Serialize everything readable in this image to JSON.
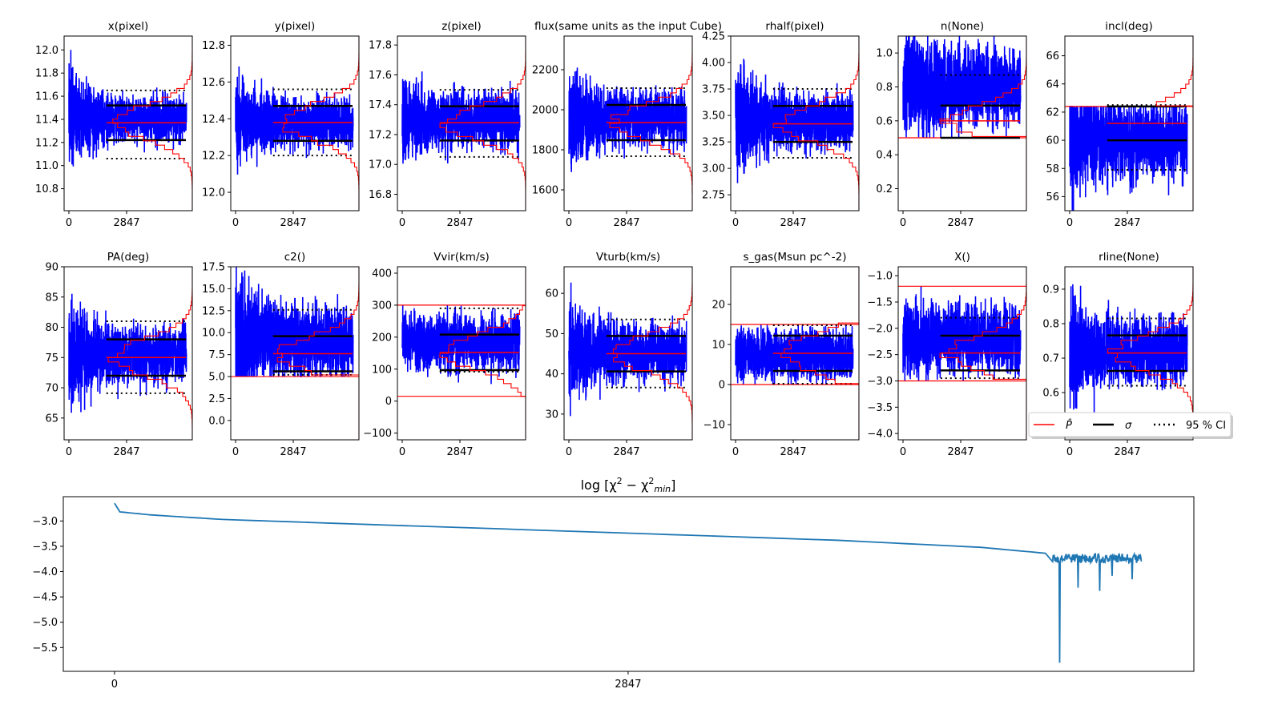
{
  "chart_data": {
    "type": "line",
    "description_title": "MCMC trace panels",
    "n_samples": 5800,
    "xticks": [
      0,
      2847
    ],
    "xtick_labels": [
      "0",
      "2847"
    ],
    "colors": {
      "trace": "#0000ff",
      "best": "#ff0000",
      "sigma": "#000000",
      "ci": "#000000",
      "prior": "#ff0000",
      "chi": "#1f77b4"
    },
    "panels": [
      {
        "title": "x(pixel)",
        "ylim": [
          10.61,
          12.12
        ],
        "yticks": [
          10.8,
          11.0,
          11.2,
          11.4,
          11.6,
          11.8,
          12.0
        ],
        "ytick_labels": [
          "10.8",
          "11.0",
          "11.2",
          "11.4",
          "11.6",
          "11.8",
          "12.0"
        ],
        "best": 11.37,
        "sigma": [
          11.22,
          11.52
        ],
        "ci": [
          11.06,
          11.65
        ],
        "priors": [],
        "trace_center": 11.4,
        "trace_amp": [
          0.6,
          0.25
        ]
      },
      {
        "title": "y(pixel)",
        "ylim": [
          11.9,
          12.85
        ],
        "yticks": [
          12.0,
          12.2,
          12.4,
          12.6,
          12.8
        ],
        "ytick_labels": [
          "12.0",
          "12.2",
          "12.4",
          "12.6",
          "12.8"
        ],
        "best": 12.38,
        "sigma": [
          12.28,
          12.47
        ],
        "ci": [
          12.2,
          12.56
        ],
        "priors": [],
        "trace_center": 12.38,
        "trace_amp": [
          0.3,
          0.17
        ]
      },
      {
        "title": "z(pixel)",
        "ylim": [
          16.69,
          17.86
        ],
        "yticks": [
          16.8,
          17.0,
          17.2,
          17.4,
          17.6,
          17.8
        ],
        "ytick_labels": [
          "16.8",
          "17.0",
          "17.2",
          "17.4",
          "17.6",
          "17.8"
        ],
        "best": 17.28,
        "sigma": [
          17.16,
          17.39
        ],
        "ci": [
          17.05,
          17.5
        ],
        "priors": [],
        "trace_center": 17.3,
        "trace_amp": [
          0.42,
          0.24
        ]
      },
      {
        "title": "flux(same units as the input Cube)",
        "ylim": [
          1496,
          2368
        ],
        "yticks": [
          1600,
          1800,
          2000,
          2200
        ],
        "ytick_labels": [
          "1600",
          "1800",
          "2000",
          "2200"
        ],
        "best": 1936,
        "sigma": [
          1848,
          2024
        ],
        "ci": [
          1768,
          2108
        ],
        "priors": [],
        "trace_center": 1960,
        "trace_amp": [
          360,
          170
        ]
      },
      {
        "title": "rhalf(pixel)",
        "ylim": [
          2.6,
          4.25
        ],
        "yticks": [
          2.75,
          3.0,
          3.25,
          3.5,
          3.75,
          4.0,
          4.25
        ],
        "ytick_labels": [
          "2.75",
          "3.00",
          "3.25",
          "3.50",
          "3.75",
          "4.00",
          "4.25"
        ],
        "best": 3.42,
        "sigma": [
          3.25,
          3.59
        ],
        "ci": [
          3.1,
          3.75
        ],
        "priors": [],
        "trace_center": 3.45,
        "trace_amp": [
          0.75,
          0.33
        ]
      },
      {
        "title": "n(None)",
        "ylim": [
          0.07,
          1.1
        ],
        "yticks": [
          0.2,
          0.4,
          0.6,
          0.8,
          1.0
        ],
        "ytick_labels": [
          "0.2",
          "0.4",
          "0.6",
          "0.8",
          "1.0"
        ],
        "best": 0.6,
        "sigma": [
          0.5,
          0.69
        ],
        "ci": [
          0.5,
          0.87
        ],
        "priors": [
          0.5
        ],
        "trace_center": 0.8,
        "trace_amp": [
          0.45,
          0.3
        ]
      },
      {
        "title": "incl(deg)",
        "ylim": [
          55.0,
          67.4
        ],
        "yticks": [
          56,
          58,
          60,
          62,
          64,
          66
        ],
        "ytick_labels": [
          "56",
          "58",
          "60",
          "62",
          "64",
          "66"
        ],
        "best": 61.2,
        "sigma": [
          60.0,
          62.4
        ],
        "ci": [
          57.9,
          62.5
        ],
        "priors": [
          62.4
        ],
        "trace_center": 60.0,
        "trace_amp": [
          6,
          3.5
        ]
      },
      {
        "title": "PA(deg)",
        "ylim": [
          61.4,
          90.0
        ],
        "yticks": [
          65,
          70,
          75,
          80,
          85,
          90
        ],
        "ytick_labels": [
          "65",
          "70",
          "75",
          "80",
          "85",
          "90"
        ],
        "best": 75.0,
        "sigma": [
          72.0,
          78.0
        ],
        "ci": [
          69.1,
          81.0
        ],
        "priors": [],
        "trace_center": 75.5,
        "trace_amp": [
          12,
          6
        ]
      },
      {
        "title": "c2()",
        "ylim": [
          -2.2,
          17.5
        ],
        "yticks": [
          0.0,
          2.5,
          5.0,
          7.5,
          10.0,
          12.5,
          15.0,
          17.5
        ],
        "ytick_labels": [
          "0.0",
          "2.5",
          "5.0",
          "7.5",
          "10.0",
          "12.5",
          "15.0",
          "17.5"
        ],
        "best": 7.6,
        "sigma": [
          5.6,
          9.6
        ],
        "ci": [
          5.2,
          12.6
        ],
        "priors": [
          5.0
        ],
        "trace_center": 9.0,
        "trace_amp": [
          11,
          5
        ]
      },
      {
        "title": "Vvir(km/s)",
        "ylim": [
          -121,
          420
        ],
        "yticks": [
          -100,
          0,
          100,
          200,
          300,
          400
        ],
        "ytick_labels": [
          "−100",
          "0",
          "100",
          "200",
          "300",
          "400"
        ],
        "best": 152,
        "sigma": [
          97,
          208
        ],
        "ci": [
          92,
          290
        ],
        "priors": [
          300,
          15
        ],
        "trace_center": 185,
        "trace_amp": [
          120,
          110
        ]
      },
      {
        "title": "Vturb(km/s)",
        "ylim": [
          23.6,
          66.6
        ],
        "yticks": [
          30,
          40,
          50,
          60
        ],
        "ytick_labels": [
          "30",
          "40",
          "50",
          "60"
        ],
        "best": 45.0,
        "sigma": [
          40.6,
          49.4
        ],
        "ci": [
          36.6,
          53.5
        ],
        "priors": [],
        "trace_center": 45.5,
        "trace_amp": [
          17,
          9
        ]
      },
      {
        "title": "s_gas(Msun pc^-2)",
        "ylim": [
          -13.8,
          29.4
        ],
        "yticks": [
          -10,
          0,
          10,
          20
        ],
        "ytick_labels": [
          "−10",
          "0",
          "10",
          "20"
        ],
        "best": 7.8,
        "sigma": [
          3.4,
          12.2
        ],
        "ci": [
          0.2,
          14.8
        ],
        "priors": [
          15,
          0
        ],
        "trace_center": 7.5,
        "trace_amp": [
          8,
          8
        ]
      },
      {
        "title": "X()",
        "ylim": [
          -4.12,
          -0.83
        ],
        "yticks": [
          -4.0,
          -3.5,
          -3.0,
          -2.5,
          -2.0,
          -1.5,
          -1.0
        ],
        "ytick_labels": [
          "−4.0",
          "−3.5",
          "−3.0",
          "−2.5",
          "−2.0",
          "−1.5",
          "−1.0"
        ],
        "best": -2.47,
        "sigma": [
          -2.8,
          -2.14
        ],
        "ci": [
          -2.95,
          -1.8
        ],
        "priors": [
          -1.2,
          -3.0
        ],
        "trace_center": -2.2,
        "trace_amp": [
          1.0,
          0.8
        ]
      },
      {
        "title": "rline(None)",
        "ylim": [
          0.463,
          0.965
        ],
        "yticks": [
          0.6,
          0.7,
          0.8,
          0.9
        ],
        "ytick_labels": [
          "0.6",
          "0.7",
          "0.8",
          "0.9"
        ],
        "best": 0.715,
        "sigma": [
          0.663,
          0.766
        ],
        "ci": [
          0.62,
          0.815
        ],
        "priors": [],
        "trace_center": 0.72,
        "trace_amp": [
          0.24,
          0.12
        ]
      }
    ],
    "legend": {
      "placement": "right, below rline panel",
      "entries": [
        {
          "label": "P̂",
          "style": "solid-red"
        },
        {
          "label": "σ",
          "style": "solid-black"
        },
        {
          "label": "95 % CI",
          "style": "dotted-black"
        }
      ]
    },
    "chi2": {
      "title_parts": [
        "log  [χ",
        "2",
        " − χ",
        "2",
        "min",
        "]"
      ],
      "ylim": [
        -5.97,
        -2.52
      ],
      "yticks": [
        -3.0,
        -3.5,
        -4.0,
        -4.5,
        -5.0,
        -5.5
      ],
      "ytick_labels": [
        "−3.0",
        "−3.5",
        "−4.0",
        "−4.5",
        "−5.0",
        "−5.5"
      ],
      "xlim": [
        -284,
        5983
      ],
      "curve_points": [
        [
          0,
          -2.65
        ],
        [
          30,
          -2.82
        ],
        [
          200,
          -2.88
        ],
        [
          600,
          -2.97
        ],
        [
          1500,
          -3.08
        ],
        [
          2847,
          -3.24
        ],
        [
          4000,
          -3.38
        ],
        [
          4800,
          -3.52
        ],
        [
          5200,
          -3.65
        ]
      ],
      "noisy_segment": {
        "start": 5200,
        "end": 5694,
        "level": -3.72,
        "spread": 0.12,
        "min_value": -5.8,
        "min_at": 5240
      }
    }
  }
}
